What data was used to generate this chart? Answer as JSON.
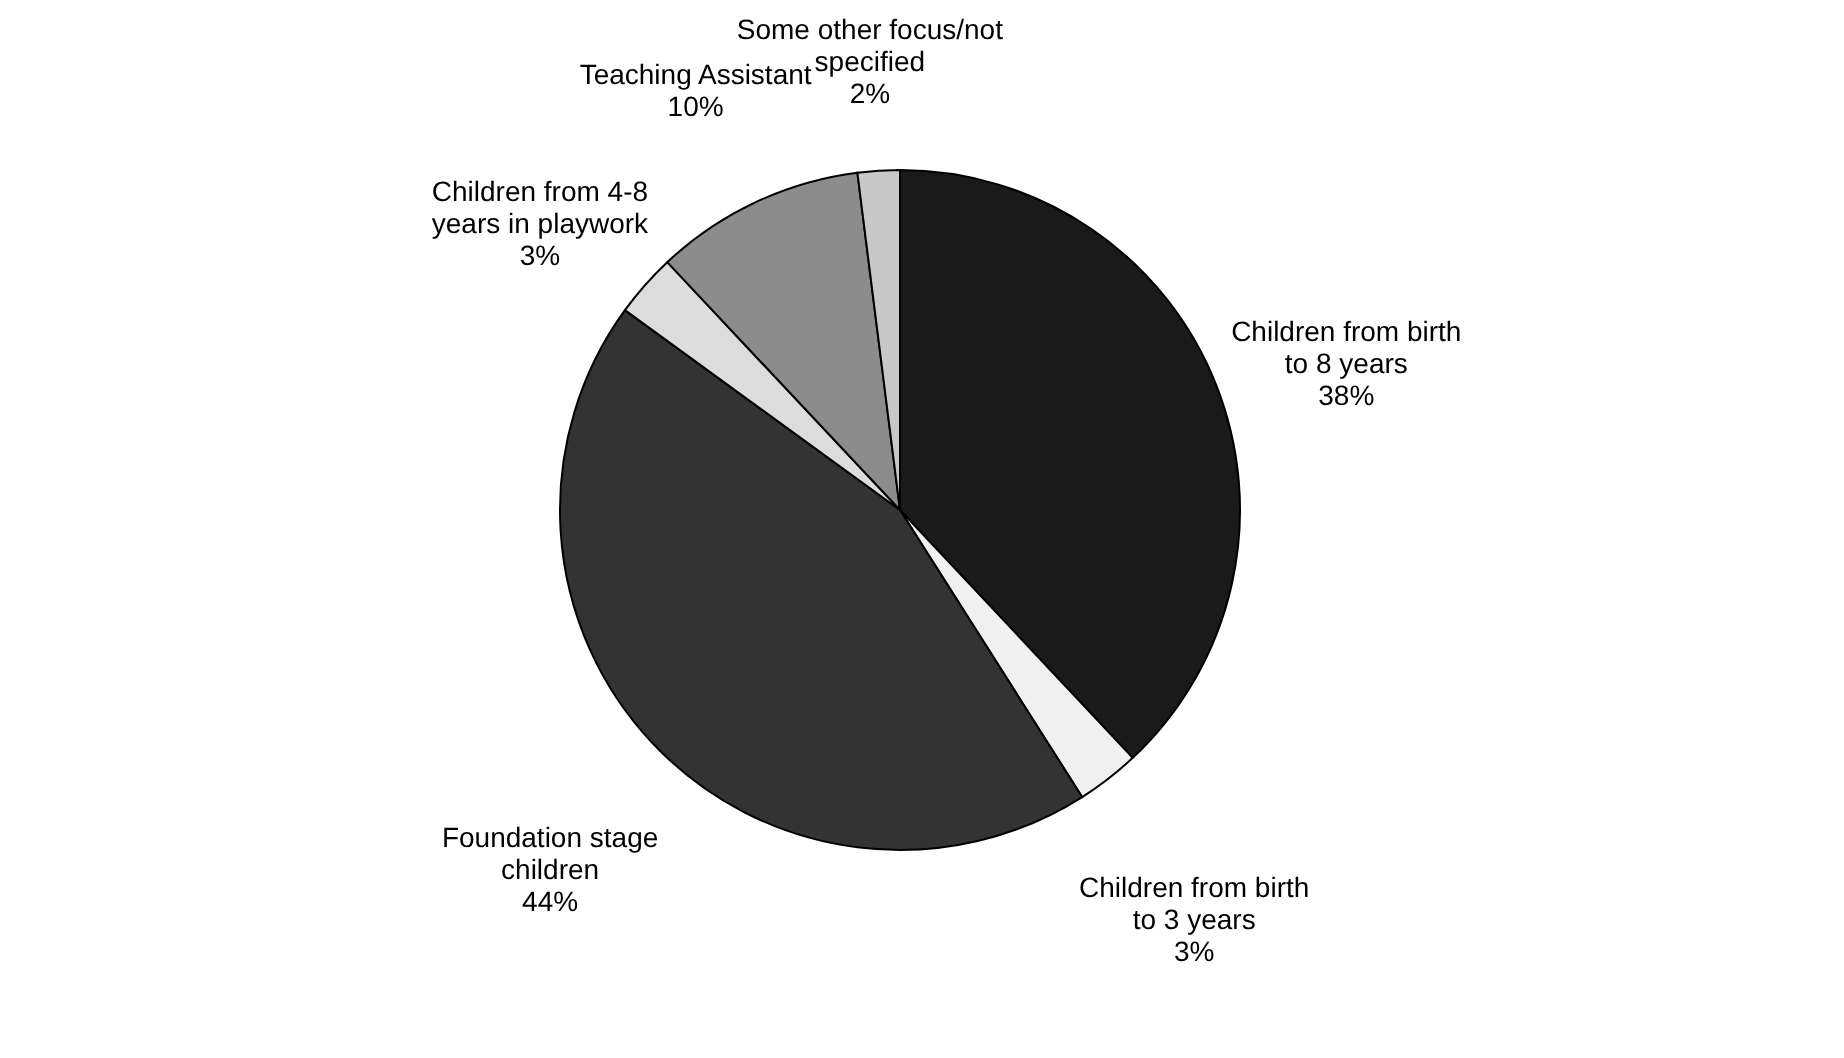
{
  "chart_data": {
    "type": "pie",
    "categories": [
      "Children from birth to 8 years",
      "Children from birth to 3 years",
      "Foundation stage children",
      "Children from 4-8 years in playwork",
      "Teaching Assistant",
      "Some other focus/not specified"
    ],
    "values": [
      38,
      3,
      44,
      3,
      10,
      2
    ],
    "value_labels": [
      "38%",
      "3%",
      "44%",
      "3%",
      "10%",
      "2%"
    ],
    "colors": [
      "#1a1a1a",
      "#f0f0f0",
      "#333333",
      "#dcdcdc",
      "#8c8c8c",
      "#c8c8c8"
    ],
    "legend": false
  }
}
